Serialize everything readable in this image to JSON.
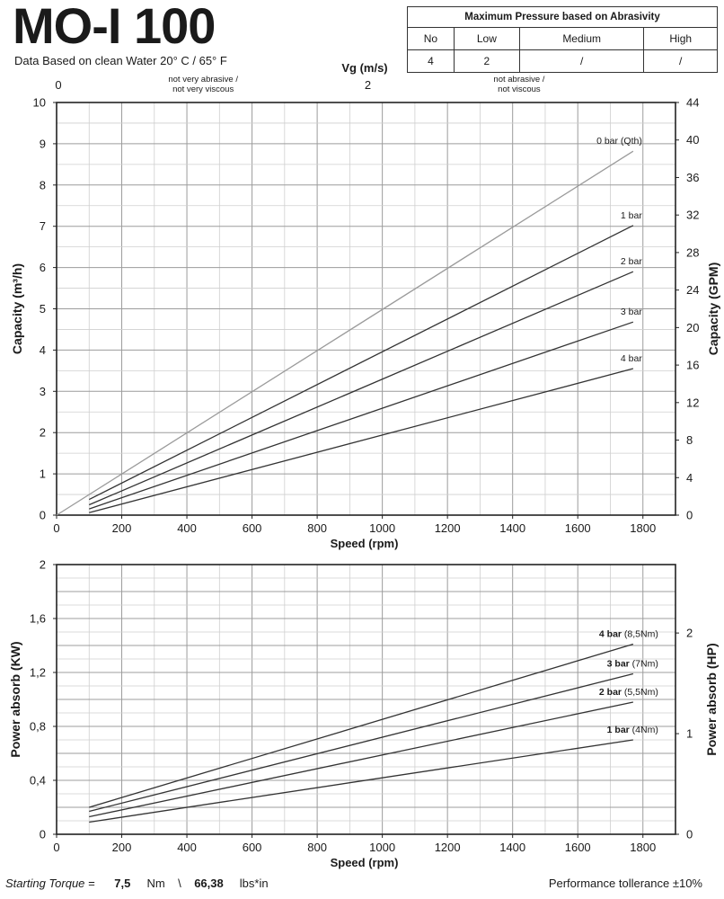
{
  "header": {
    "title": "MO-I 100",
    "subtitle": "Data Based on clean Water 20° C  /  65° F"
  },
  "pressure_table": {
    "title": "Maximum Pressure based on Abrasivity",
    "columns": [
      "No",
      "Low",
      "Medium",
      "High"
    ],
    "values": [
      "4",
      "2",
      "/",
      "/"
    ]
  },
  "footer": {
    "torque_label": "Starting Torque =",
    "torque_nm": "7,5",
    "nm_unit": "Nm",
    "separator": "\\",
    "torque_lbs": "66,38",
    "lbs_unit": "lbs*in",
    "tolerance": "Performance tollerance ±10%"
  },
  "chart_data": [
    {
      "type": "line",
      "title": "",
      "xlabel": "Speed (rpm)",
      "ylabel": "Capacity (m³/h)",
      "y2label": "Capacity (GPM)",
      "top_axis_label": "Vg (m/s)",
      "xlim": [
        0,
        1900
      ],
      "ylim": [
        0,
        10
      ],
      "y2lim": [
        0,
        44
      ],
      "xticks": [
        "0",
        "200",
        "400",
        "600",
        "800",
        "1000",
        "1200",
        "1400",
        "1600",
        "1800"
      ],
      "yticks": [
        "0",
        "1",
        "2",
        "3",
        "4",
        "5",
        "6",
        "7",
        "8",
        "9",
        "10"
      ],
      "y2ticks": [
        "0",
        "4",
        "8",
        "12",
        "16",
        "20",
        "24",
        "28",
        "32",
        "36",
        "40",
        "44"
      ],
      "top_ticks": [
        {
          "label": "0",
          "rpm": 0
        },
        {
          "label": "2",
          "rpm": 950
        }
      ],
      "top_notes": [
        {
          "text": [
            "not very abrasive /",
            "not very viscous"
          ],
          "rpm": 450
        },
        {
          "text": [
            "not  abrasive /",
            "not  viscous"
          ],
          "rpm": 1420
        }
      ],
      "grid": true,
      "series": [
        {
          "name": "0 bar (Qth)",
          "x": [
            0,
            1770
          ],
          "y": [
            0,
            8.82
          ],
          "color": "#9a9a9a"
        },
        {
          "name": "1 bar",
          "x": [
            100,
            1770
          ],
          "y": [
            0.38,
            7.02
          ],
          "color": "#333333"
        },
        {
          "name": "2 bar",
          "x": [
            100,
            1770
          ],
          "y": [
            0.25,
            5.9
          ],
          "color": "#333333"
        },
        {
          "name": "3 bar",
          "x": [
            100,
            1770
          ],
          "y": [
            0.15,
            4.68
          ],
          "color": "#333333"
        },
        {
          "name": "4 bar",
          "x": [
            100,
            1770
          ],
          "y": [
            0.06,
            3.55
          ],
          "color": "#333333"
        }
      ]
    },
    {
      "type": "line",
      "title": "",
      "xlabel": "Speed (rpm)",
      "ylabel": "Power absorb (KW)",
      "y2label": "Power absorb (HP)",
      "xlim": [
        0,
        1900
      ],
      "ylim": [
        0,
        2
      ],
      "y2lim": [
        0,
        2.68
      ],
      "xticks": [
        "0",
        "200",
        "400",
        "600",
        "800",
        "1000",
        "1200",
        "1400",
        "1600",
        "1800"
      ],
      "yticks": [
        "0",
        "0,4",
        "0,8",
        "1,2",
        "1,6",
        "2"
      ],
      "y2ticks": [
        {
          "label": "0",
          "v": 0
        },
        {
          "label": "1",
          "v": 1
        },
        {
          "label": "2",
          "v": 2
        }
      ],
      "grid": true,
      "series": [
        {
          "name": "4 bar",
          "note": "(8,5Nm)",
          "x": [
            100,
            1770
          ],
          "y": [
            0.2,
            1.41
          ],
          "color": "#333333"
        },
        {
          "name": "3 bar",
          "note": "(7Nm)",
          "x": [
            100,
            1770
          ],
          "y": [
            0.17,
            1.19
          ],
          "color": "#333333"
        },
        {
          "name": "2 bar",
          "note": "(5,5Nm)",
          "x": [
            100,
            1770
          ],
          "y": [
            0.13,
            0.98
          ],
          "color": "#333333"
        },
        {
          "name": "1 bar",
          "note": "(4Nm)",
          "x": [
            100,
            1770
          ],
          "y": [
            0.09,
            0.7
          ],
          "color": "#333333"
        }
      ]
    }
  ]
}
